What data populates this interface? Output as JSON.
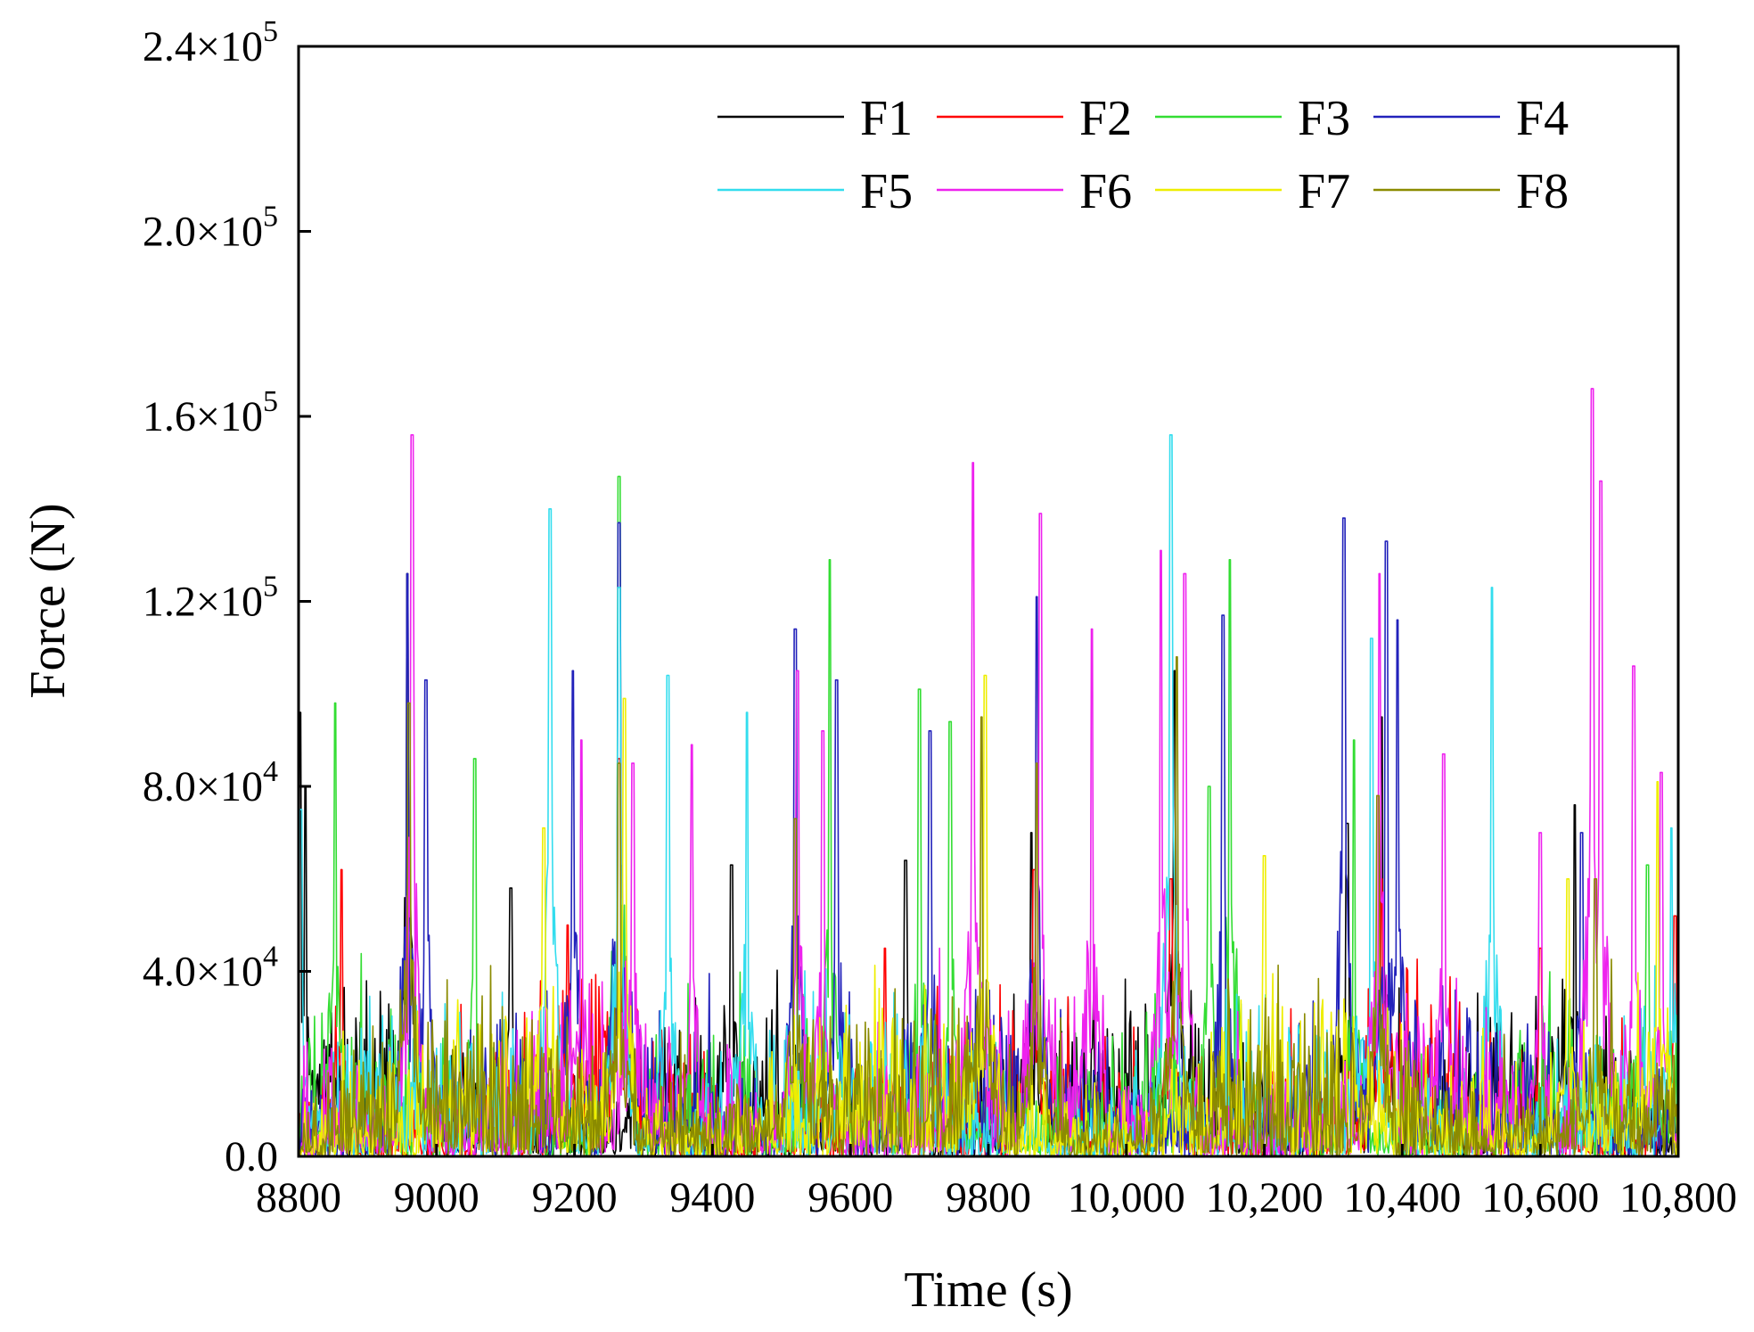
{
  "chart_data": {
    "type": "line",
    "title": "",
    "xlabel": "Time (s)",
    "ylabel": "Force (N)",
    "xlim": [
      8800,
      10800
    ],
    "ylim": [
      0,
      240000
    ],
    "grid": false,
    "legend": {
      "placement": "top-right",
      "columns": 4
    },
    "x_ticks": [
      {
        "value": 8800,
        "label": "8800"
      },
      {
        "value": 9000,
        "label": "9000"
      },
      {
        "value": 9200,
        "label": "9200"
      },
      {
        "value": 9400,
        "label": "9400"
      },
      {
        "value": 9600,
        "label": "9600"
      },
      {
        "value": 9800,
        "label": "9800"
      },
      {
        "value": 10000,
        "label": "10,000"
      },
      {
        "value": 10200,
        "label": "10,200"
      },
      {
        "value": 10400,
        "label": "10,400"
      },
      {
        "value": 10600,
        "label": "10,600"
      },
      {
        "value": 10800,
        "label": "10,800"
      }
    ],
    "y_ticks": [
      {
        "value": 0,
        "mantissa": "0.0",
        "exponent": ""
      },
      {
        "value": 40000,
        "mantissa": "4.0×10",
        "exponent": "4"
      },
      {
        "value": 80000,
        "mantissa": "8.0×10",
        "exponent": "4"
      },
      {
        "value": 120000,
        "mantissa": "1.2×10",
        "exponent": "5"
      },
      {
        "value": 160000,
        "mantissa": "1.6×10",
        "exponent": "5"
      },
      {
        "value": 200000,
        "mantissa": "2.0×10",
        "exponent": "5"
      },
      {
        "value": 240000,
        "mantissa": "2.4×10",
        "exponent": "5"
      }
    ],
    "series": [
      {
        "name": "F1",
        "color": "#000000",
        "seed": 11,
        "peaks": [
          [
            8802,
            96000
          ],
          [
            8810,
            80000
          ],
          [
            8958,
            126000
          ],
          [
            9108,
            58000
          ],
          [
            9428,
            63000
          ],
          [
            9680,
            64000
          ],
          [
            9862,
            70000
          ],
          [
            10070,
            105000
          ],
          [
            10320,
            72000
          ],
          [
            10370,
            95000
          ],
          [
            10650,
            76000
          ]
        ]
      },
      {
        "name": "F2",
        "color": "#ff0000",
        "seed": 23,
        "peaks": [
          [
            8862,
            62000
          ],
          [
            9190,
            50000
          ],
          [
            9265,
            86000
          ],
          [
            9650,
            45000
          ],
          [
            9866,
            62000
          ],
          [
            10065,
            60000
          ],
          [
            10370,
            60000
          ],
          [
            10600,
            45000
          ],
          [
            10795,
            52000
          ]
        ]
      },
      {
        "name": "F3",
        "color": "#33dd33",
        "seed": 37,
        "peaks": [
          [
            8853,
            98000
          ],
          [
            9055,
            86000
          ],
          [
            9265,
            147000
          ],
          [
            9570,
            129000
          ],
          [
            9700,
            101000
          ],
          [
            9745,
            94000
          ],
          [
            10150,
            129000
          ],
          [
            10120,
            80000
          ],
          [
            10330,
            90000
          ],
          [
            10755,
            63000
          ]
        ]
      },
      {
        "name": "F4",
        "color": "#2222bb",
        "seed": 41,
        "peaks": [
          [
            8958,
            126000
          ],
          [
            8985,
            103000
          ],
          [
            9198,
            105000
          ],
          [
            9265,
            137000
          ],
          [
            9520,
            114000
          ],
          [
            9580,
            103000
          ],
          [
            9715,
            92000
          ],
          [
            9870,
            121000
          ],
          [
            10140,
            117000
          ],
          [
            10315,
            138000
          ],
          [
            10377,
            133000
          ],
          [
            10393,
            116000
          ],
          [
            10660,
            70000
          ]
        ]
      },
      {
        "name": "F5",
        "color": "#33ddee",
        "seed": 53,
        "peaks": [
          [
            8803,
            75000
          ],
          [
            9165,
            140000
          ],
          [
            9265,
            123000
          ],
          [
            9335,
            104000
          ],
          [
            9450,
            96000
          ],
          [
            10065,
            156000
          ],
          [
            10355,
            112000
          ],
          [
            10530,
            123000
          ],
          [
            10790,
            71000
          ]
        ]
      },
      {
        "name": "F6",
        "color": "#ee22ee",
        "seed": 67,
        "peaks": [
          [
            8965,
            156000
          ],
          [
            9210,
            90000
          ],
          [
            9285,
            85000
          ],
          [
            9370,
            89000
          ],
          [
            9523,
            105000
          ],
          [
            9560,
            92000
          ],
          [
            9778,
            150000
          ],
          [
            9875,
            139000
          ],
          [
            9950,
            114000
          ],
          [
            10050,
            131000
          ],
          [
            10085,
            126000
          ],
          [
            10367,
            126000
          ],
          [
            10460,
            87000
          ],
          [
            10600,
            70000
          ],
          [
            10675,
            166000
          ],
          [
            10688,
            146000
          ],
          [
            10735,
            106000
          ],
          [
            10775,
            83000
          ]
        ]
      },
      {
        "name": "F7",
        "color": "#eeee00",
        "seed": 79,
        "peaks": [
          [
            9155,
            71000
          ],
          [
            9272,
            99000
          ],
          [
            9795,
            104000
          ],
          [
            10200,
            65000
          ],
          [
            10640,
            60000
          ],
          [
            10770,
            81000
          ]
        ]
      },
      {
        "name": "F8",
        "color": "#8b8b00",
        "seed": 97,
        "peaks": [
          [
            8960,
            98000
          ],
          [
            9265,
            85000
          ],
          [
            9520,
            73000
          ],
          [
            9790,
            95000
          ],
          [
            9870,
            85000
          ],
          [
            10073,
            108000
          ],
          [
            10365,
            78000
          ],
          [
            10680,
            60000
          ]
        ]
      }
    ]
  }
}
